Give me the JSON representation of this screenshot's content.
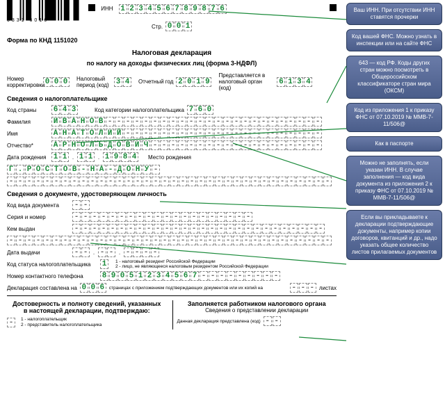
{
  "header": {
    "inn_label": "ИНН",
    "inn": "123456789876",
    "barcode_text": "0331   6016",
    "page_label": "Стр.",
    "page": "001",
    "form_kind": "Форма по КНД 1151020",
    "title": "Налоговая декларация",
    "subtitle": "по налогу на доходы физических лиц (форма 3-НДФЛ)"
  },
  "params": {
    "corr_label": "Номер\nкорректировки",
    "corr": "000",
    "tax_period_label": "Налоговый\nпериод (код)",
    "tax_period": "34",
    "report_year_label": "Отчетный год",
    "report_year": "2019",
    "submitted_label": "Представляется в\nналоговый орган (код)",
    "submitted": "6134"
  },
  "taxpayer": {
    "section": "Сведения о налогоплательщике",
    "country_label": "Код страны",
    "country": "643",
    "category_label": "Код категории налогоплательщика",
    "category": "760",
    "surname_label": "Фамилия",
    "surname": "ИВАНОВ",
    "name_label": "Имя",
    "name": "АНАТОЛИЙ",
    "patronymic_label": "Отчество*",
    "patronymic": "АРНОЛЬДОВИЧ",
    "dob_label": "Дата рождения",
    "dob_d": "11",
    "dob_m": "11",
    "dob_y": "1984",
    "birthplace_label": "Место рождения",
    "birthplace": "Г.РОСТОВ-НА-ДОНУ"
  },
  "iddoc": {
    "section": "Сведения о документе, удостоверяющем личность",
    "type_label": "Код вида документа",
    "series_label": "Серия и номер",
    "issued_by_label": "Кем выдан",
    "date_label": "Дата выдачи"
  },
  "status": {
    "label": "Код статуса налогоплательщика",
    "value": "1",
    "note1": "1 - налоговый резидент Российской Федерации",
    "note2": "2 - лицо, не являющееся налоговым резидентом Российской Федерации"
  },
  "phone": {
    "label": "Номер контактного телефона",
    "value": "89051234567"
  },
  "pages": {
    "label_pre": "Декларация составлена на",
    "pages": "006",
    "label_mid": "страницах с приложением подтверждающих документов или их копий на",
    "label_end": "листах"
  },
  "bottom": {
    "left_title": "Достоверность и полноту сведений, указанных\nв настоящей декларации, подтверждаю:",
    "legend1": "1 - налогоплательщик",
    "legend2": "2 - представитель налогоплательщика",
    "right_title": "Заполняется работником налогового органа",
    "right_sub": "Сведения о представлении декларации",
    "right_line": "Данная декларация представлена (код)"
  },
  "notes": {
    "n1": "Ваш ИНН. При отсутствии ИНН ставятся прочерки",
    "n2": "Код вашей ФНС. Можно узнать в инспекции или на сайте ФНС",
    "n3": "643 — код РФ. Коды других стран можно посмотреть в Общероссийском классификаторе стран мира (ОКСМ)",
    "n4": "Код из приложения 1 к приказу ФНС от 07.10.2019 № ММВ-7-11/506@",
    "n5": "Как в паспорте",
    "n6": "Можно не заполнять, если указан ИНН. В случае заполнения — код вида документа из приложения 2 к приказу ФНС от 07.10.2019 № ММВ-7-11/506@",
    "n7": "Если вы прикладываете к декларации подтверждающие документы, например копии договоров, квитанций и др., надо указать общее количество листов прилагаемых документов"
  },
  "styling": {
    "cell_filled_color": "#1a8a3a",
    "note_bg_top": "#6a7ba8",
    "note_bg_bot": "#4a5d8a",
    "arrow_color": "#1a8a3a"
  }
}
